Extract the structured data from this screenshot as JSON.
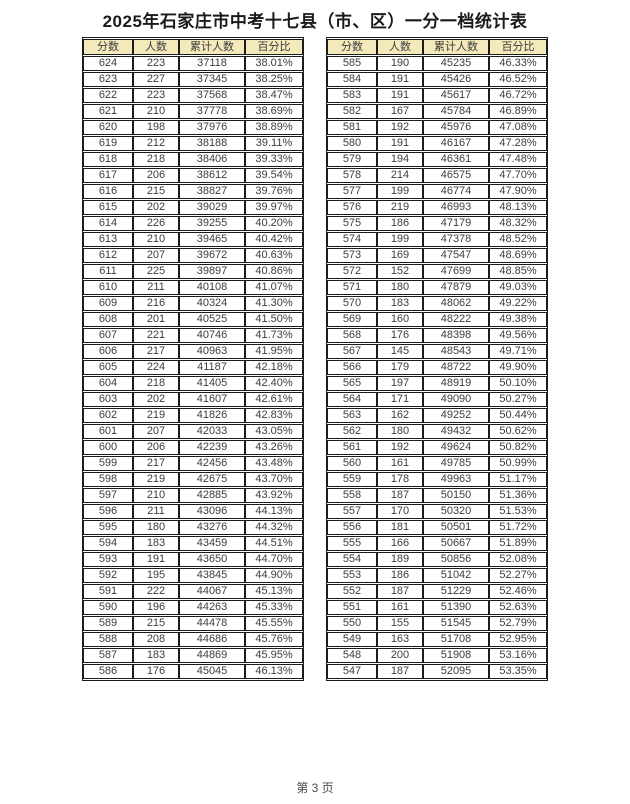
{
  "title": "2025年石家庄市中考十七县（市、区）一分一档统计表",
  "footer": "第 3 页",
  "table_headers": [
    "分数",
    "人数",
    "累计人数",
    "百分比"
  ],
  "colors": {
    "header_bg": "#f3e9bb",
    "border": "#1c1c1c",
    "text": "#3b3b3b",
    "background": "#ffffff"
  },
  "tables": [
    {
      "name": "left",
      "rows": [
        [
          "624",
          "223",
          "37118",
          "38.01%"
        ],
        [
          "623",
          "227",
          "37345",
          "38.25%"
        ],
        [
          "622",
          "223",
          "37568",
          "38.47%"
        ],
        [
          "621",
          "210",
          "37778",
          "38.69%"
        ],
        [
          "620",
          "198",
          "37976",
          "38.89%"
        ],
        [
          "619",
          "212",
          "38188",
          "39.11%"
        ],
        [
          "618",
          "218",
          "38406",
          "39.33%"
        ],
        [
          "617",
          "206",
          "38612",
          "39.54%"
        ],
        [
          "616",
          "215",
          "38827",
          "39.76%"
        ],
        [
          "615",
          "202",
          "39029",
          "39.97%"
        ],
        [
          "614",
          "226",
          "39255",
          "40.20%"
        ],
        [
          "613",
          "210",
          "39465",
          "40.42%"
        ],
        [
          "612",
          "207",
          "39672",
          "40.63%"
        ],
        [
          "611",
          "225",
          "39897",
          "40.86%"
        ],
        [
          "610",
          "211",
          "40108",
          "41.07%"
        ],
        [
          "609",
          "216",
          "40324",
          "41.30%"
        ],
        [
          "608",
          "201",
          "40525",
          "41.50%"
        ],
        [
          "607",
          "221",
          "40746",
          "41.73%"
        ],
        [
          "606",
          "217",
          "40963",
          "41.95%"
        ],
        [
          "605",
          "224",
          "41187",
          "42.18%"
        ],
        [
          "604",
          "218",
          "41405",
          "42.40%"
        ],
        [
          "603",
          "202",
          "41607",
          "42.61%"
        ],
        [
          "602",
          "219",
          "41826",
          "42.83%"
        ],
        [
          "601",
          "207",
          "42033",
          "43.05%"
        ],
        [
          "600",
          "206",
          "42239",
          "43.26%"
        ],
        [
          "599",
          "217",
          "42456",
          "43.48%"
        ],
        [
          "598",
          "219",
          "42675",
          "43.70%"
        ],
        [
          "597",
          "210",
          "42885",
          "43.92%"
        ],
        [
          "596",
          "211",
          "43096",
          "44.13%"
        ],
        [
          "595",
          "180",
          "43276",
          "44.32%"
        ],
        [
          "594",
          "183",
          "43459",
          "44.51%"
        ],
        [
          "593",
          "191",
          "43650",
          "44.70%"
        ],
        [
          "592",
          "195",
          "43845",
          "44.90%"
        ],
        [
          "591",
          "222",
          "44067",
          "45.13%"
        ],
        [
          "590",
          "196",
          "44263",
          "45.33%"
        ],
        [
          "589",
          "215",
          "44478",
          "45.55%"
        ],
        [
          "588",
          "208",
          "44686",
          "45.76%"
        ],
        [
          "587",
          "183",
          "44869",
          "45.95%"
        ],
        [
          "586",
          "176",
          "45045",
          "46.13%"
        ]
      ]
    },
    {
      "name": "right",
      "rows": [
        [
          "585",
          "190",
          "45235",
          "46.33%"
        ],
        [
          "584",
          "191",
          "45426",
          "46.52%"
        ],
        [
          "583",
          "191",
          "45617",
          "46.72%"
        ],
        [
          "582",
          "167",
          "45784",
          "46.89%"
        ],
        [
          "581",
          "192",
          "45976",
          "47.08%"
        ],
        [
          "580",
          "191",
          "46167",
          "47.28%"
        ],
        [
          "579",
          "194",
          "46361",
          "47.48%"
        ],
        [
          "578",
          "214",
          "46575",
          "47.70%"
        ],
        [
          "577",
          "199",
          "46774",
          "47.90%"
        ],
        [
          "576",
          "219",
          "46993",
          "48.13%"
        ],
        [
          "575",
          "186",
          "47179",
          "48.32%"
        ],
        [
          "574",
          "199",
          "47378",
          "48.52%"
        ],
        [
          "573",
          "169",
          "47547",
          "48.69%"
        ],
        [
          "572",
          "152",
          "47699",
          "48.85%"
        ],
        [
          "571",
          "180",
          "47879",
          "49.03%"
        ],
        [
          "570",
          "183",
          "48062",
          "49.22%"
        ],
        [
          "569",
          "160",
          "48222",
          "49.38%"
        ],
        [
          "568",
          "176",
          "48398",
          "49.56%"
        ],
        [
          "567",
          "145",
          "48543",
          "49.71%"
        ],
        [
          "566",
          "179",
          "48722",
          "49.90%"
        ],
        [
          "565",
          "197",
          "48919",
          "50.10%"
        ],
        [
          "564",
          "171",
          "49090",
          "50.27%"
        ],
        [
          "563",
          "162",
          "49252",
          "50.44%"
        ],
        [
          "562",
          "180",
          "49432",
          "50.62%"
        ],
        [
          "561",
          "192",
          "49624",
          "50.82%"
        ],
        [
          "560",
          "161",
          "49785",
          "50.99%"
        ],
        [
          "559",
          "178",
          "49963",
          "51.17%"
        ],
        [
          "558",
          "187",
          "50150",
          "51.36%"
        ],
        [
          "557",
          "170",
          "50320",
          "51.53%"
        ],
        [
          "556",
          "181",
          "50501",
          "51.72%"
        ],
        [
          "555",
          "166",
          "50667",
          "51.89%"
        ],
        [
          "554",
          "189",
          "50856",
          "52.08%"
        ],
        [
          "553",
          "186",
          "51042",
          "52.27%"
        ],
        [
          "552",
          "187",
          "51229",
          "52.46%"
        ],
        [
          "551",
          "161",
          "51390",
          "52.63%"
        ],
        [
          "550",
          "155",
          "51545",
          "52.79%"
        ],
        [
          "549",
          "163",
          "51708",
          "52.95%"
        ],
        [
          "548",
          "200",
          "51908",
          "53.16%"
        ],
        [
          "547",
          "187",
          "52095",
          "53.35%"
        ]
      ]
    }
  ]
}
